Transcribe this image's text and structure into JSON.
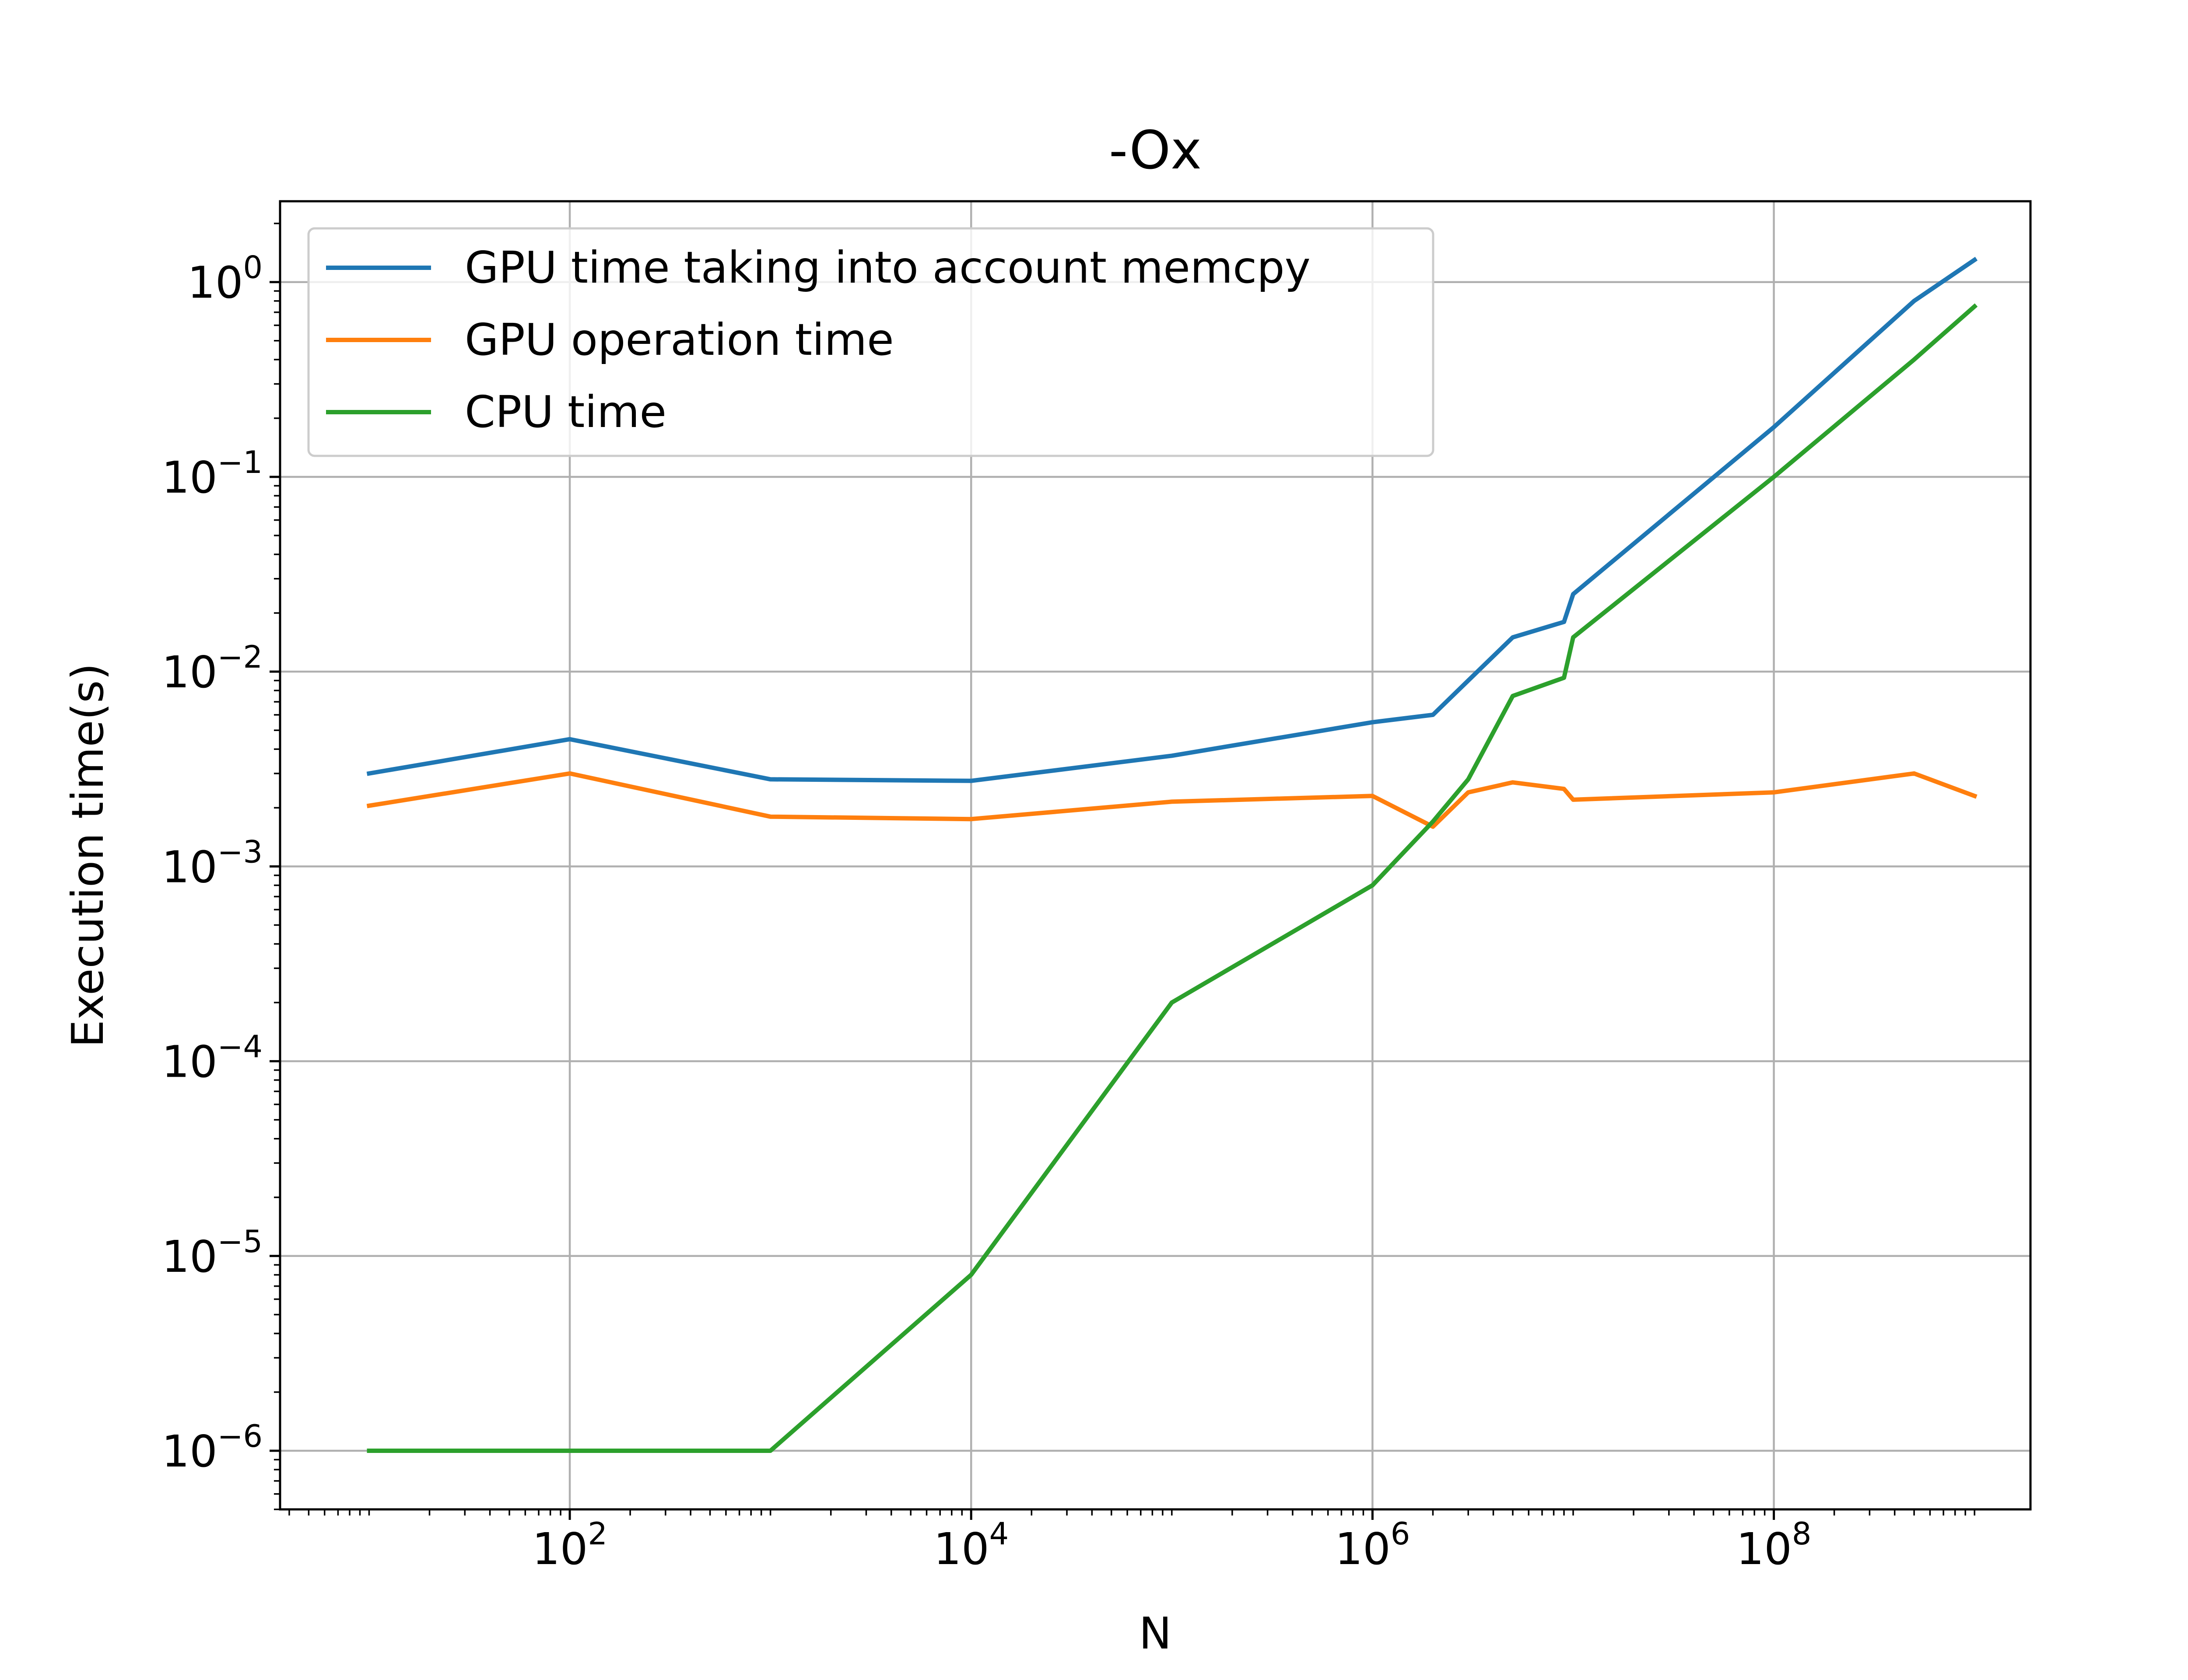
{
  "chart_data": {
    "type": "line",
    "title": "-Ox",
    "xlabel": "N",
    "ylabel": "Execution time(s)",
    "xscale": "log",
    "yscale": "log",
    "xlim": [
      3.6,
      1900000000.0
    ],
    "ylim": [
      5e-07,
      2.6
    ],
    "grid": true,
    "legend_position": "upper-left",
    "x_ticks": [
      {
        "base": "10",
        "exp": "2",
        "value": 100
      },
      {
        "base": "10",
        "exp": "4",
        "value": 10000
      },
      {
        "base": "10",
        "exp": "6",
        "value": 1000000
      },
      {
        "base": "10",
        "exp": "8",
        "value": 100000000
      }
    ],
    "y_ticks": [
      {
        "base": "10",
        "exp": "0",
        "value": 1
      },
      {
        "base": "10",
        "exp": "−1",
        "value": 0.1
      },
      {
        "base": "10",
        "exp": "−2",
        "value": 0.01
      },
      {
        "base": "10",
        "exp": "−3",
        "value": 0.001
      },
      {
        "base": "10",
        "exp": "−4",
        "value": 0.0001
      },
      {
        "base": "10",
        "exp": "−5",
        "value": 1e-05
      },
      {
        "base": "10",
        "exp": "−6",
        "value": 1e-06
      }
    ],
    "series": [
      {
        "name": "GPU time taking into account memcpy",
        "color": "#1f77b4",
        "x": [
          10,
          100,
          1000,
          10000,
          100000,
          1000000,
          2000000,
          3000000,
          5000000,
          9000000,
          10000000,
          100000000,
          500000000,
          1000000000
        ],
        "y": [
          0.003,
          0.0045,
          0.0028,
          0.00275,
          0.0037,
          0.0055,
          0.006,
          0.009,
          0.015,
          0.018,
          0.025,
          0.18,
          0.8,
          1.3
        ]
      },
      {
        "name": "GPU operation time",
        "color": "#ff7f0e",
        "x": [
          10,
          100,
          1000,
          10000,
          100000,
          1000000,
          2000000,
          3000000,
          5000000,
          9000000,
          10000000,
          100000000,
          500000000,
          1000000000
        ],
        "y": [
          0.00205,
          0.003,
          0.0018,
          0.00175,
          0.00215,
          0.0023,
          0.0016,
          0.0024,
          0.0027,
          0.0025,
          0.0022,
          0.0024,
          0.003,
          0.0023
        ]
      },
      {
        "name": "CPU time",
        "color": "#2ca02c",
        "x": [
          10,
          100,
          1000,
          10000,
          100000,
          1000000,
          2000000,
          3000000,
          5000000,
          9000000,
          10000000,
          100000000,
          500000000,
          1000000000
        ],
        "y": [
          1e-06,
          1e-06,
          1e-06,
          8e-06,
          0.0002,
          0.0008,
          0.0017,
          0.0028,
          0.0075,
          0.0093,
          0.015,
          0.1,
          0.4,
          0.75
        ]
      }
    ]
  }
}
